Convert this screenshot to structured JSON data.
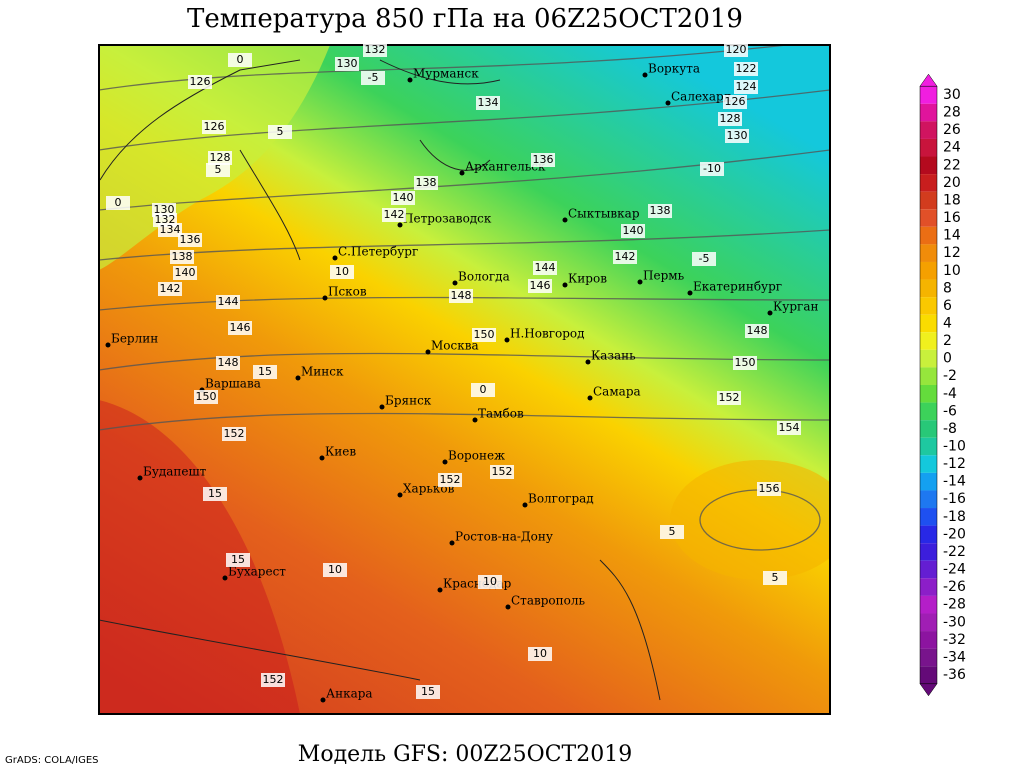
{
  "header": {
    "title": "Температура 850 гПа на 06Z25OCT2019"
  },
  "footer": {
    "model": "Модель GFS: 00Z25OCT2019",
    "credit": "GrADS: COLA/IGES"
  },
  "cities": [
    "Мурманск",
    "Воркута",
    "Салехард",
    "Архангельск",
    "Сыктывкар",
    "Петрозаводск",
    "С.Петербург",
    "Вологда",
    "Киров",
    "Пермь",
    "Екатеринбург",
    "Курган",
    "Псков",
    "Москва",
    "Н.Новгород",
    "Казань",
    "Берлин",
    "Варшава",
    "Минск",
    "Брянск",
    "Тамбов",
    "Самара",
    "Киев",
    "Воронеж",
    "Харьков",
    "Волгоград",
    "Будапешт",
    "Ростов-на-Дону",
    "Бухарест",
    "Краснодар",
    "Ставрополь",
    "Анкара"
  ],
  "contour_labels": [
    132,
    130,
    126,
    126,
    128,
    130,
    132,
    134,
    136,
    138,
    140,
    142,
    144,
    146,
    148,
    150,
    152,
    134,
    136,
    138,
    140,
    142,
    144,
    146,
    148,
    150,
    152,
    152,
    152,
    154,
    156,
    120,
    122,
    124,
    126,
    128,
    130,
    138,
    140,
    142,
    148,
    150,
    152,
    0,
    5,
    5,
    0,
    -5,
    10,
    -10,
    -5,
    0,
    15,
    15,
    15,
    10,
    10,
    5,
    5,
    10,
    15
  ],
  "colorbar": {
    "ticks": [
      30,
      28,
      26,
      24,
      22,
      20,
      18,
      16,
      14,
      12,
      10,
      8,
      6,
      4,
      2,
      0,
      -2,
      -4,
      -6,
      -8,
      -10,
      -12,
      -14,
      -16,
      -18,
      -20,
      -22,
      -24,
      -26,
      -28,
      -30,
      -32,
      -34,
      -36
    ],
    "colors": [
      "#f01ee0",
      "#e0149c",
      "#d01460",
      "#c8143c",
      "#b40a1e",
      "#c81e1e",
      "#d23c1e",
      "#e15028",
      "#eb6e14",
      "#f08c0a",
      "#f5a000",
      "#f5b400",
      "#fac800",
      "#fadc00",
      "#f0f01e",
      "#c8f03c",
      "#96e63c",
      "#64dc3c",
      "#3cd25a",
      "#28c878",
      "#1ec8a0",
      "#14c8dc",
      "#14a0f0",
      "#1e78f0",
      "#1e50f0",
      "#2828e6",
      "#3c1edc",
      "#641ed2",
      "#8c1ec8",
      "#b41ec8",
      "#a01eb4",
      "#8c14a0",
      "#78148c",
      "#640a78"
    ]
  }
}
